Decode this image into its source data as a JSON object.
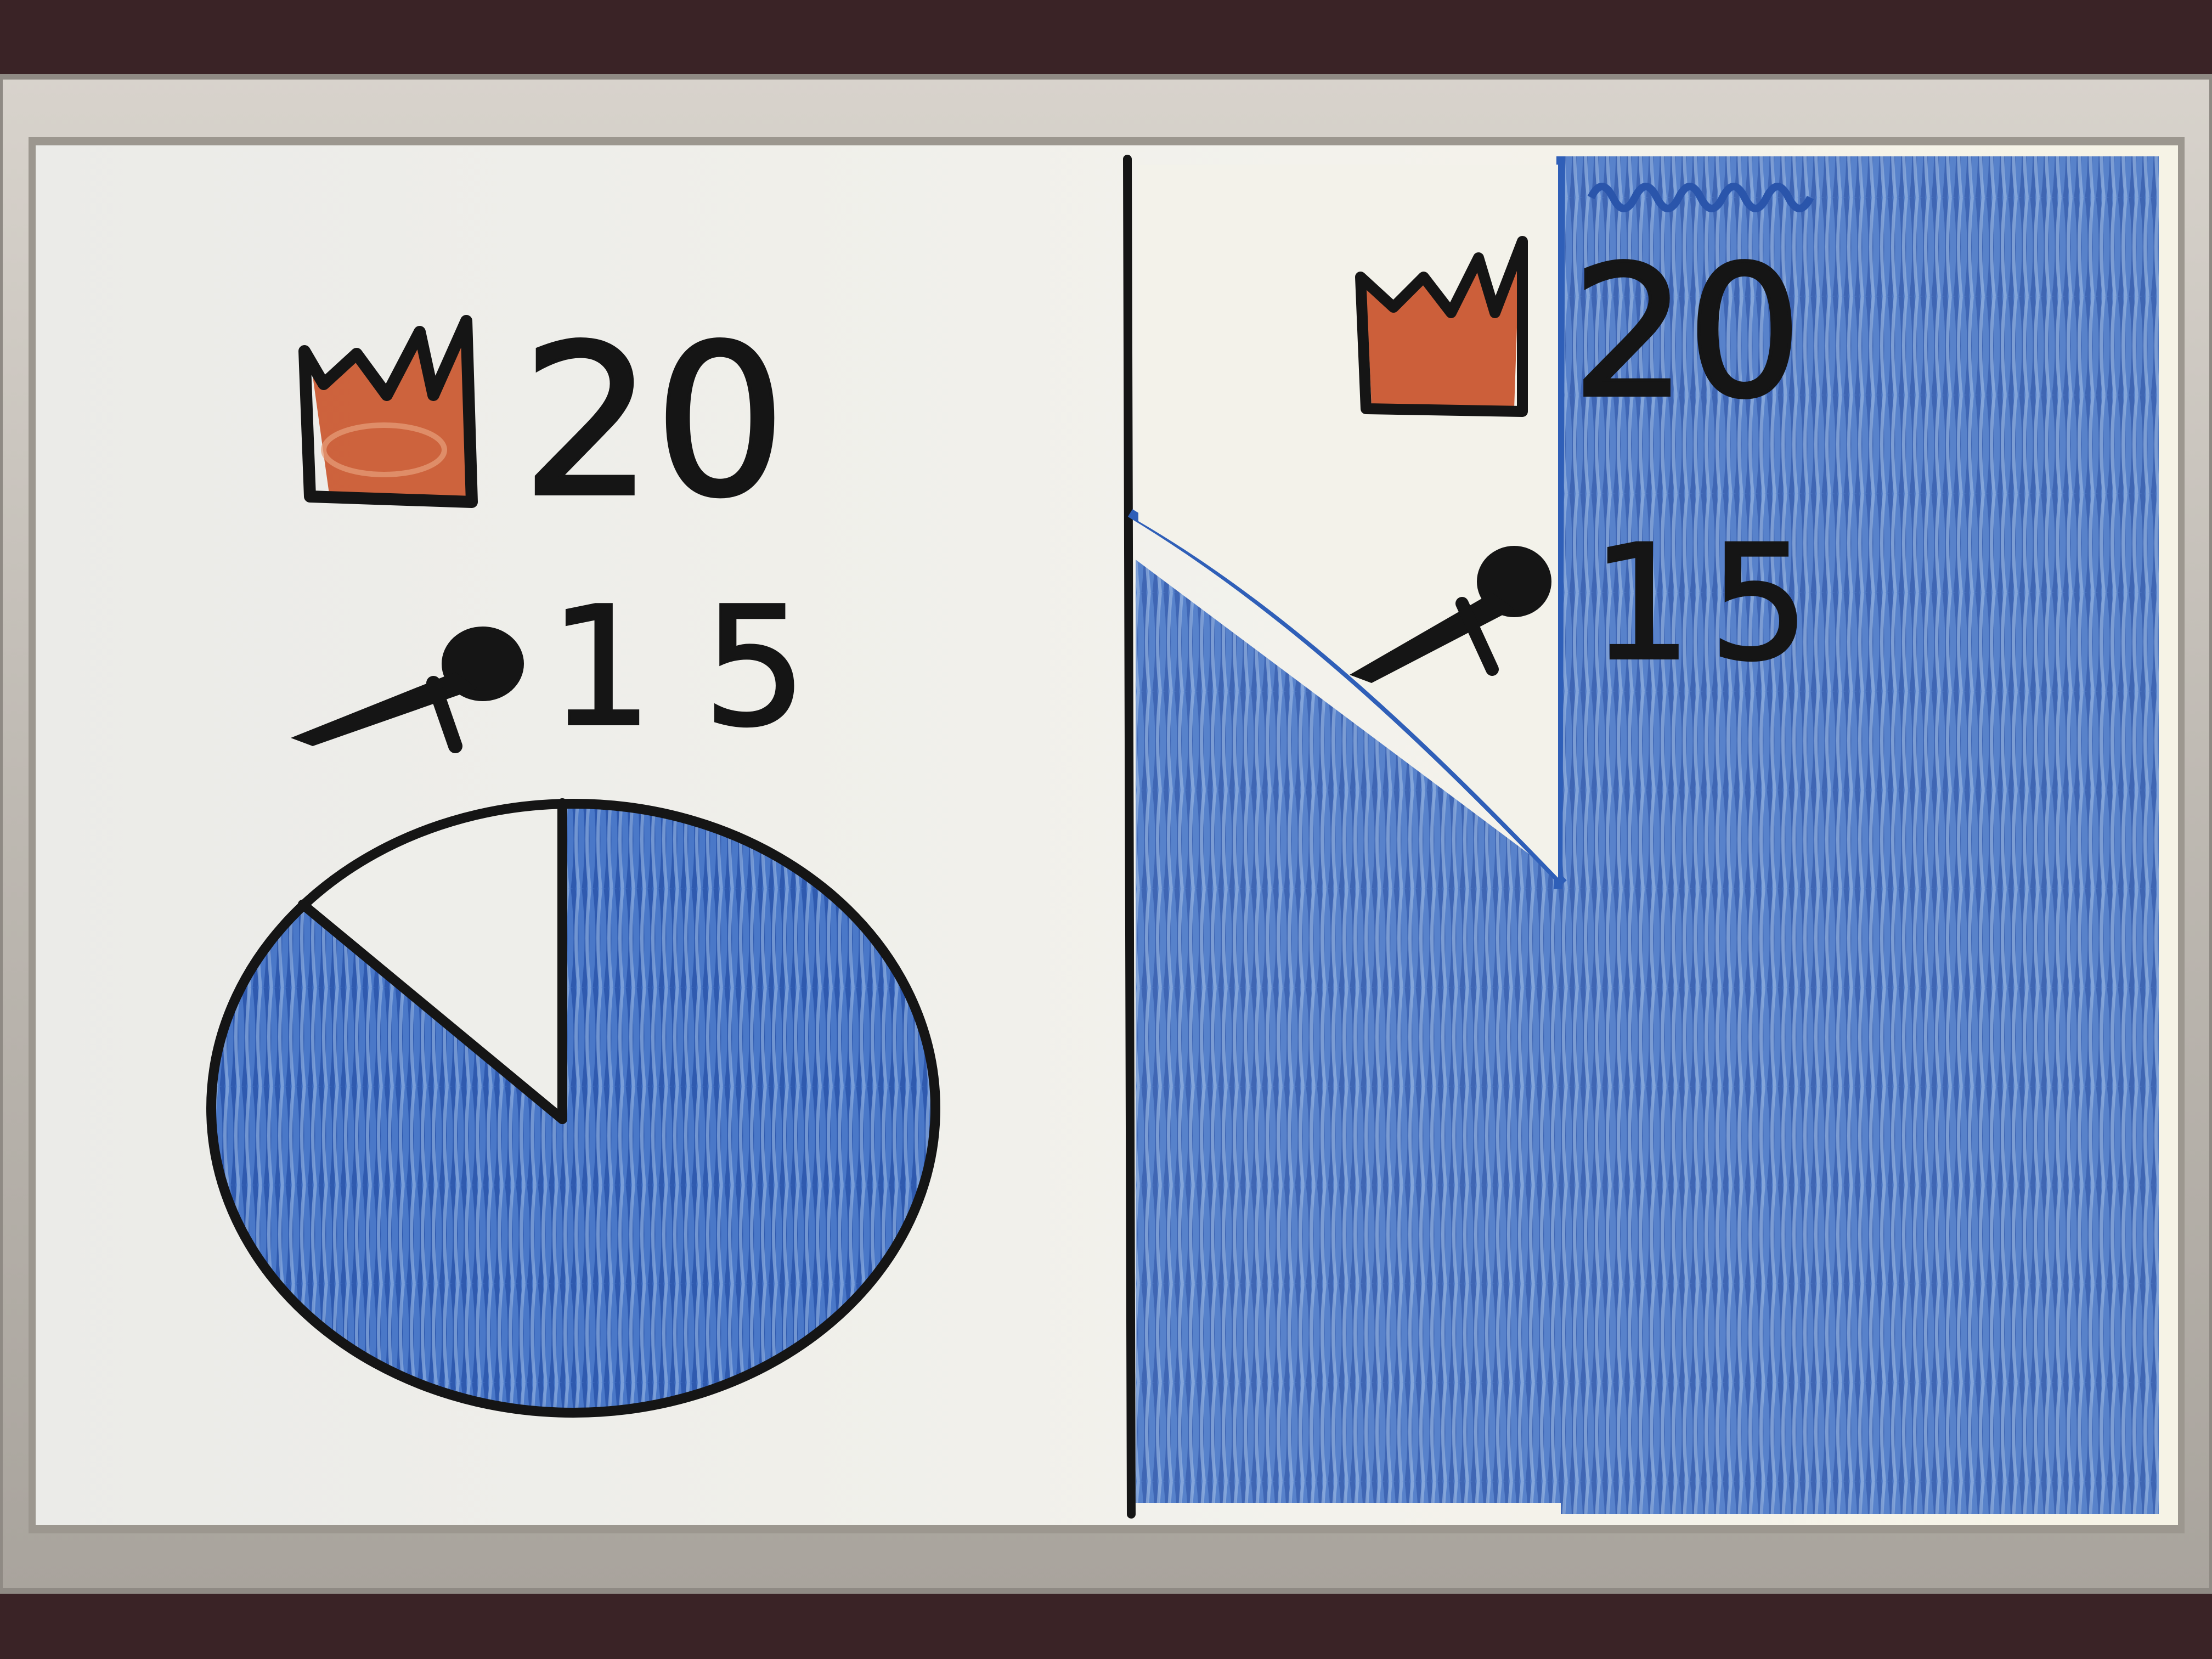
{
  "colors": {
    "background": "#3a2326",
    "frame_light": "#cfcac4",
    "frame_dark": "#8f8a84",
    "board": "#eeeeea",
    "board_right": "#f4f2ea",
    "ink_black": "#151515",
    "ink_blue": "#2f5fb8",
    "ink_blue_light": "#6f93d4",
    "crown_orange": "#c9532a"
  },
  "left_panel": {
    "crown_icon": "crown-icon",
    "crown_value": "20",
    "pin_icon": "pushpin-icon",
    "pin_value": "15",
    "pie": {
      "type": "pie",
      "filled_fraction": 0.86,
      "empty_fraction": 0.14,
      "filled_color": "#2f5fb8"
    }
  },
  "right_panel": {
    "crown_icon": "crown-icon",
    "crown_value": "20",
    "pin_icon": "pushpin-icon",
    "pin_value": "15",
    "shaded_area_color": "#2f5fb8"
  }
}
